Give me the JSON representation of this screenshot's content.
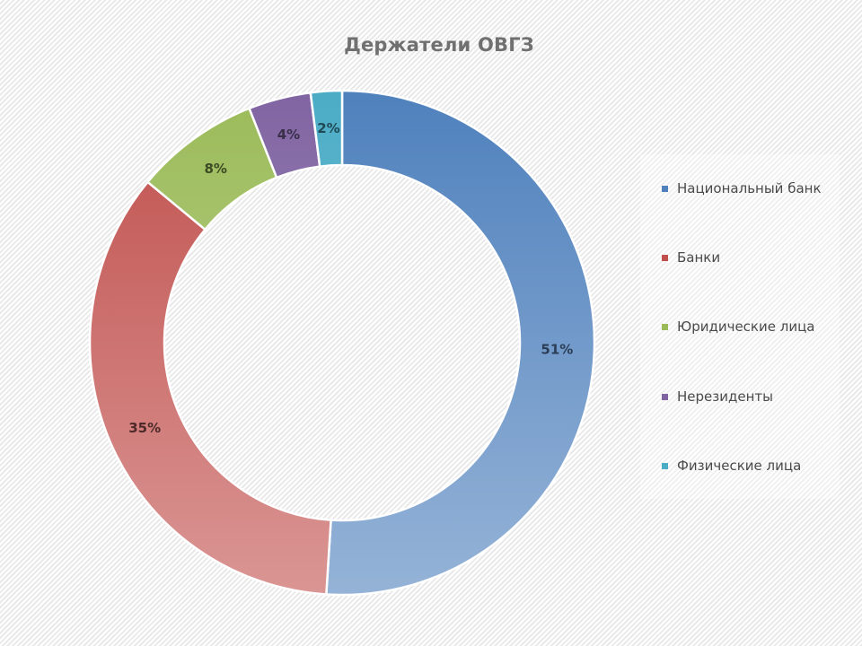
{
  "chart_data": {
    "type": "pie",
    "subtype": "doughnut",
    "title": "Держатели ОВГЗ",
    "categories": [
      "Национальный банк",
      "Банки",
      "Юридические лица",
      "Нерезиденты",
      "Физические лица"
    ],
    "values": [
      51,
      35,
      8,
      4,
      2
    ],
    "labels": [
      "51%",
      "35%",
      "8%",
      "4%",
      "2%"
    ],
    "unit": "%",
    "colors": [
      "#4f81bd",
      "#c0504d",
      "#9bbb59",
      "#8064a2",
      "#4bacc6"
    ],
    "start_angle_deg": 0,
    "direction": "clockwise",
    "legend_position": "right"
  },
  "title": "Держатели ОВГЗ",
  "legend": {
    "items": [
      {
        "label": "Национальный банк",
        "color": "#4f81bd"
      },
      {
        "label": "Банки",
        "color": "#c0504d"
      },
      {
        "label": "Юридические лица",
        "color": "#9bbb59"
      },
      {
        "label": "Нерезиденты",
        "color": "#8064a2"
      },
      {
        "label": "Физические лица",
        "color": "#4bacc6"
      }
    ]
  },
  "slices": [
    {
      "label": "51%",
      "gradient_top": "#4f81bd",
      "gradient_bottom": "#95b3d7",
      "label_color": "#2c3e57"
    },
    {
      "label": "35%",
      "gradient_top": "#c0504d",
      "gradient_bottom": "#da9694",
      "label_color": "#4d2a29"
    },
    {
      "label": "8%",
      "gradient_top": "#9bbb59",
      "gradient_bottom": "#c3d69b",
      "label_color": "#3c4a24"
    },
    {
      "label": "4%",
      "gradient_top": "#8064a2",
      "gradient_bottom": "#b2a1c7",
      "label_color": "#3a2f4a"
    },
    {
      "label": "2%",
      "gradient_top": "#4bacc6",
      "gradient_bottom": "#92cddc",
      "label_color": "#1f4a55"
    }
  ]
}
